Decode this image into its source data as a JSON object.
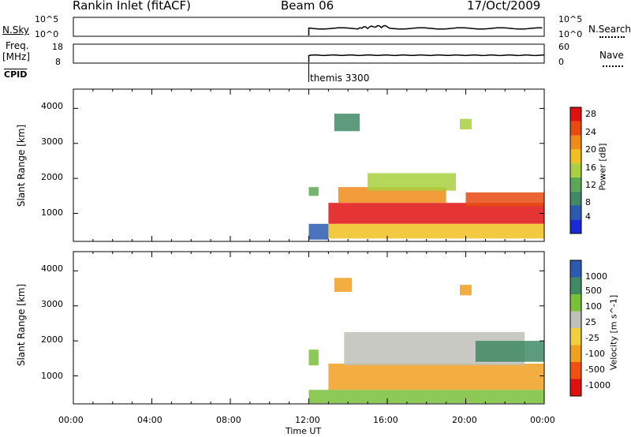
{
  "header": {
    "station": "Rankin Inlet (fitACF)",
    "beam": "Beam 06",
    "date": "17/Oct/2009"
  },
  "top_panels": {
    "nsky_label": "N.Sky",
    "nsky_ticks": [
      "10^5",
      "10^0"
    ],
    "nsearch_label": "N.Search",
    "nsearch_ticks": [
      "10^5",
      "10^0"
    ],
    "freq_label": "Freq.",
    "freq_unit": "[MHz]",
    "freq_ticks": [
      "18",
      "8"
    ],
    "nave_label": "Nave",
    "nave_ticks": [
      "60",
      "0"
    ],
    "cpid_label": "CPID",
    "cpid_value": "themis 3300"
  },
  "x_axis": {
    "label": "Time UT",
    "ticks": [
      "00:00",
      "04:00",
      "08:00",
      "12:00",
      "16:00",
      "20:00",
      "00:00"
    ]
  },
  "colors": {
    "power": [
      "#1a2bd6",
      "#2a5bb0",
      "#3f8a64",
      "#5aa855",
      "#a8d040",
      "#f0c020",
      "#f08a18",
      "#e84a10",
      "#e01010"
    ],
    "velocity": [
      "#e01010",
      "#f05010",
      "#f0a020",
      "#f0d040",
      "#c0c0b8",
      "#78c038",
      "#3f8a64",
      "#2a5bb0"
    ]
  },
  "chart_data": [
    {
      "type": "heatmap",
      "name": "power",
      "ylabel": "Slant Range [km]",
      "yticks": [
        "4000",
        "3000",
        "2000",
        "1000"
      ],
      "ylim": [
        200,
        4550
      ],
      "xlim_hours": [
        0,
        24
      ],
      "colorbar_label": "Power [dB]",
      "colorbar_ticks": [
        "28",
        "24",
        "20",
        "16",
        "12",
        "8",
        "4"
      ],
      "regions": [
        {
          "t0": 12.0,
          "t1": 12.5,
          "r0": 1500,
          "r1": 1750,
          "level": 3
        },
        {
          "t0": 12.0,
          "t1": 13.0,
          "r0": 250,
          "r1": 700,
          "level": 1
        },
        {
          "t0": 13.0,
          "t1": 24.0,
          "r0": 700,
          "r1": 1300,
          "level": 8
        },
        {
          "t0": 13.5,
          "t1": 19.0,
          "r0": 1300,
          "r1": 1750,
          "level": 6
        },
        {
          "t0": 15.0,
          "t1": 19.5,
          "r0": 1650,
          "r1": 2150,
          "level": 4
        },
        {
          "t0": 20.0,
          "t1": 24.0,
          "r0": 1200,
          "r1": 1600,
          "level": 7
        },
        {
          "t0": 13.3,
          "t1": 14.6,
          "r0": 3350,
          "r1": 3850,
          "level": 2
        },
        {
          "t0": 19.7,
          "t1": 20.3,
          "r0": 3400,
          "r1": 3700,
          "level": 4
        },
        {
          "t0": 13.0,
          "t1": 24.0,
          "r0": 280,
          "r1": 700,
          "level": 5
        }
      ]
    },
    {
      "type": "heatmap",
      "name": "velocity",
      "ylabel": "Slant Range [km]",
      "yticks": [
        "4000",
        "3000",
        "2000",
        "1000"
      ],
      "ylim": [
        200,
        4550
      ],
      "xlim_hours": [
        0,
        24
      ],
      "colorbar_label": "Velocity [m s^-1]",
      "colorbar_ticks": [
        "1000",
        "500",
        "100",
        "25",
        "-25",
        "-100",
        "-500",
        "-1000"
      ],
      "regions": [
        {
          "t0": 12.0,
          "t1": 12.5,
          "r0": 1300,
          "r1": 1750,
          "level": 5
        },
        {
          "t0": 13.0,
          "t1": 24.0,
          "r0": 600,
          "r1": 1350,
          "level": 2
        },
        {
          "t0": 13.8,
          "t1": 23.0,
          "r0": 1300,
          "r1": 2250,
          "level": 4
        },
        {
          "t0": 20.5,
          "t1": 24.0,
          "r0": 1400,
          "r1": 2000,
          "level": 6
        },
        {
          "t0": 13.3,
          "t1": 14.2,
          "r0": 3400,
          "r1": 3800,
          "level": 2
        },
        {
          "t0": 19.7,
          "t1": 20.3,
          "r0": 3300,
          "r1": 3600,
          "level": 2
        },
        {
          "t0": 12.0,
          "t1": 24.0,
          "r0": 220,
          "r1": 600,
          "level": 5
        }
      ]
    }
  ]
}
